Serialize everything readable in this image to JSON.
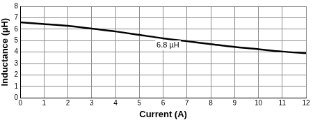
{
  "chart_data": {
    "type": "line",
    "x_label": "Current (A)",
    "y_label": "Inductance (µH)",
    "x": [
      0,
      1,
      2,
      3,
      4,
      5,
      6,
      7,
      8,
      9,
      10,
      11,
      12
    ],
    "values": [
      6.6,
      6.45,
      6.3,
      6.05,
      5.8,
      5.5,
      5.2,
      4.95,
      4.7,
      4.45,
      4.25,
      4.05,
      3.9
    ],
    "color": "#000000",
    "xlim": [
      0,
      12
    ],
    "ylim": [
      0,
      8
    ],
    "xticks": [
      0,
      1,
      2,
      3,
      4,
      5,
      6,
      7,
      8,
      9,
      10,
      11,
      12
    ],
    "yticks": [
      0,
      1,
      2,
      3,
      4,
      5,
      6,
      7,
      8
    ],
    "grid": true,
    "annotations": [
      {
        "text": "6.8 µH",
        "x": 6.2,
        "y": 4.6
      }
    ]
  }
}
